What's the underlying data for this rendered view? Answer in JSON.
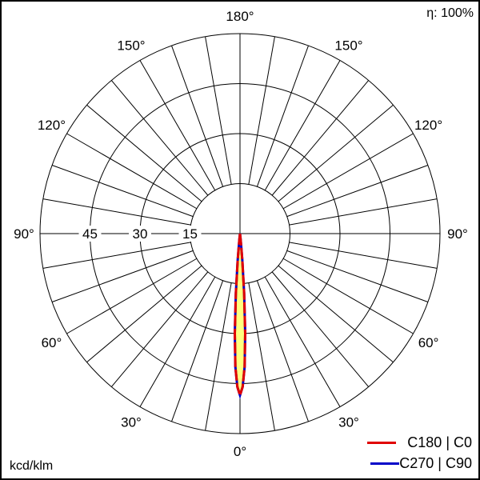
{
  "efficiency_label": "η: 100%",
  "unit_label": "kcd/klm",
  "chart_data": {
    "type": "polar",
    "r_unit": "kcd/klm",
    "r_range": [
      0,
      60
    ],
    "ring_values": [
      15,
      30,
      45,
      60
    ],
    "ring_labels": [
      "15",
      "30",
      "45"
    ],
    "angle_labels": [
      "0°",
      "30°",
      "60°",
      "90°",
      "120°",
      "150°",
      "180°"
    ],
    "angle_step_grid": 10,
    "grid": true,
    "legend_position": "bottom-right",
    "series": [
      {
        "name": "C180 | C0",
        "color": "#e00000",
        "angles": [
          -7,
          -6,
          -5,
          -4,
          -3,
          -2,
          -1,
          0,
          1,
          2,
          3,
          4,
          5,
          6,
          7
        ],
        "values": [
          0,
          2,
          8,
          18,
          30,
          40,
          46,
          48.5,
          46,
          40,
          30,
          18,
          8,
          2,
          0
        ]
      },
      {
        "name": "C270 | C90",
        "color": "#0000c8",
        "angles": [
          -7,
          -6,
          -5,
          -4,
          -3,
          -2,
          -1,
          0,
          1,
          2,
          3,
          4,
          5,
          6,
          7
        ],
        "values": [
          0,
          2,
          8,
          18,
          30,
          40,
          46,
          48.5,
          46,
          40,
          30,
          18,
          8,
          2,
          0
        ]
      }
    ],
    "fill_color": "#ffff80"
  }
}
